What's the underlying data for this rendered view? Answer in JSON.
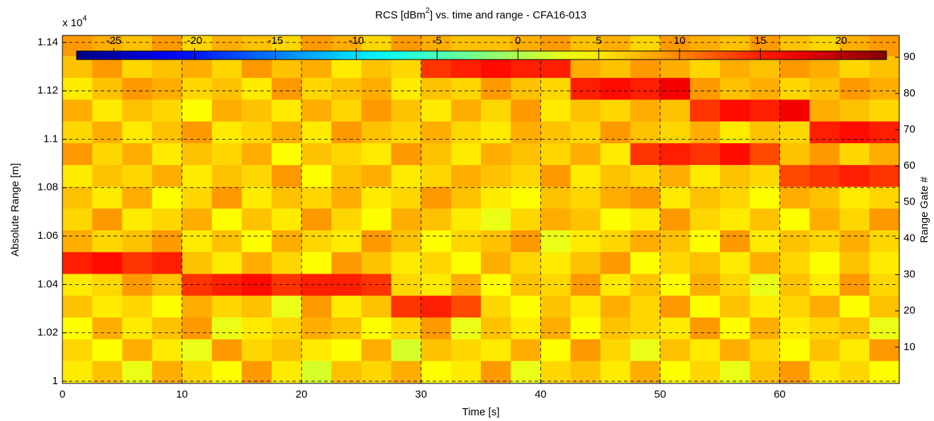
{
  "chart_data": {
    "type": "heatmap",
    "title": [
      "RCS [dBm",
      "2",
      "] vs. time and range - CFA16-013"
    ],
    "xlabel": "Time [s]",
    "ylabel": "Absolute Range [m]",
    "y2label": "Range Gate #",
    "y_multiplier": [
      "x 10",
      "4"
    ],
    "xlim": [
      0,
      70
    ],
    "xticks": [
      0,
      10,
      20,
      30,
      40,
      50,
      60
    ],
    "ylim": [
      9991,
      11429
    ],
    "yticks": [
      {
        "value": 10000,
        "label": "1"
      },
      {
        "value": 10200,
        "label": "1.02"
      },
      {
        "value": 10400,
        "label": "1.04"
      },
      {
        "value": 10600,
        "label": "1.06"
      },
      {
        "value": 10800,
        "label": "1.08"
      },
      {
        "value": 11000,
        "label": "1.1"
      },
      {
        "value": 11200,
        "label": "1.12"
      },
      {
        "value": 11400,
        "label": "1.14"
      }
    ],
    "y2lim": [
      0,
      96
    ],
    "y2ticks": [
      10,
      20,
      30,
      40,
      50,
      60,
      70,
      80,
      90
    ],
    "grid": true,
    "colormap": "jet",
    "colorbar": {
      "lim": [
        -27.3,
        22.8
      ],
      "ticks": [
        -25,
        -20,
        -15,
        -10,
        -5,
        0,
        5,
        10,
        15,
        20
      ]
    },
    "x": [
      1.25,
      3.75,
      6.25,
      8.75,
      11.25,
      13.75,
      16.25,
      18.75,
      21.25,
      23.75,
      26.25,
      28.75,
      31.25,
      33.75,
      36.25,
      38.75,
      41.25,
      43.75,
      46.25,
      48.75,
      51.25,
      53.75,
      56.25,
      58.75,
      61.25,
      63.75,
      66.25,
      68.75
    ],
    "y": [
      10040,
      10130,
      10220,
      10310,
      10400,
      10490,
      10580,
      10670,
      10760,
      10850,
      10940,
      11030,
      11120,
      11210,
      11300,
      11390
    ],
    "z": [
      [
        5,
        7,
        3,
        8,
        6,
        4,
        9,
        5,
        2,
        7,
        6,
        8,
        4,
        5,
        9,
        3,
        6,
        7,
        5,
        8,
        4,
        6,
        3,
        7,
        9,
        5,
        6,
        4
      ],
      [
        6,
        4,
        8,
        5,
        3,
        9,
        6,
        7,
        5,
        4,
        8,
        2,
        7,
        6,
        5,
        8,
        4,
        9,
        6,
        3,
        7,
        5,
        8,
        6,
        4,
        7,
        5,
        9
      ],
      [
        4,
        8,
        5,
        7,
        9,
        3,
        5,
        6,
        8,
        7,
        4,
        6,
        9,
        3,
        7,
        5,
        8,
        4,
        7,
        6,
        5,
        9,
        4,
        8,
        5,
        6,
        7,
        3
      ],
      [
        7,
        5,
        6,
        4,
        8,
        6,
        7,
        3,
        9,
        5,
        7,
        14,
        15,
        13,
        6,
        4,
        7,
        5,
        8,
        6,
        9,
        4,
        7,
        5,
        6,
        8,
        4,
        7
      ],
      [
        5,
        6,
        9,
        7,
        14,
        15,
        16,
        14,
        15,
        15,
        14,
        6,
        5,
        8,
        4,
        7,
        6,
        9,
        5,
        7,
        4,
        8,
        6,
        3,
        7,
        5,
        9,
        6
      ],
      [
        15,
        16,
        14,
        15,
        7,
        5,
        8,
        6,
        4,
        9,
        7,
        5,
        6,
        4,
        8,
        6,
        5,
        7,
        9,
        4,
        6,
        7,
        5,
        8,
        6,
        4,
        7,
        5
      ],
      [
        8,
        6,
        7,
        9,
        5,
        7,
        4,
        8,
        6,
        5,
        9,
        7,
        4,
        6,
        7,
        9,
        3,
        5,
        6,
        8,
        7,
        4,
        9,
        5,
        7,
        6,
        8,
        6
      ],
      [
        6,
        9,
        5,
        6,
        8,
        4,
        7,
        5,
        9,
        6,
        4,
        8,
        7,
        5,
        3,
        6,
        8,
        7,
        4,
        5,
        9,
        6,
        5,
        7,
        4,
        8,
        6,
        9
      ],
      [
        7,
        5,
        8,
        4,
        6,
        9,
        5,
        7,
        6,
        8,
        5,
        6,
        9,
        7,
        5,
        4,
        7,
        6,
        8,
        9,
        5,
        7,
        6,
        4,
        8,
        7,
        5,
        6
      ],
      [
        5,
        7,
        6,
        8,
        5,
        7,
        6,
        9,
        4,
        7,
        8,
        5,
        6,
        8,
        7,
        6,
        9,
        5,
        7,
        6,
        8,
        5,
        7,
        6,
        13,
        14,
        15,
        14
      ],
      [
        9,
        6,
        8,
        5,
        7,
        6,
        8,
        4,
        7,
        6,
        5,
        9,
        7,
        5,
        8,
        7,
        6,
        8,
        5,
        14,
        15,
        14,
        16,
        13,
        7,
        9,
        6,
        8
      ],
      [
        6,
        8,
        5,
        7,
        9,
        5,
        6,
        8,
        5,
        9,
        7,
        6,
        8,
        6,
        5,
        8,
        7,
        6,
        9,
        7,
        6,
        8,
        5,
        7,
        6,
        15,
        16,
        15
      ],
      [
        8,
        5,
        7,
        6,
        4,
        8,
        7,
        5,
        8,
        6,
        9,
        7,
        5,
        8,
        6,
        9,
        5,
        7,
        6,
        8,
        7,
        14,
        16,
        15,
        17,
        8,
        7,
        6
      ],
      [
        5,
        7,
        9,
        8,
        6,
        7,
        5,
        9,
        6,
        7,
        8,
        5,
        7,
        6,
        9,
        7,
        6,
        15,
        16,
        15,
        17,
        9,
        7,
        8,
        6,
        7,
        9,
        8
      ],
      [
        7,
        9,
        6,
        7,
        8,
        6,
        9,
        7,
        8,
        5,
        7,
        6,
        14,
        15,
        16,
        15,
        15,
        8,
        7,
        9,
        8,
        6,
        8,
        7,
        9,
        8,
        6,
        7
      ],
      [
        9,
        8,
        7,
        9,
        6,
        8,
        7,
        6,
        9,
        8,
        6,
        9,
        8,
        7,
        7,
        8,
        9,
        7,
        8,
        6,
        9,
        8,
        7,
        9,
        7,
        6,
        8,
        9
      ]
    ]
  }
}
